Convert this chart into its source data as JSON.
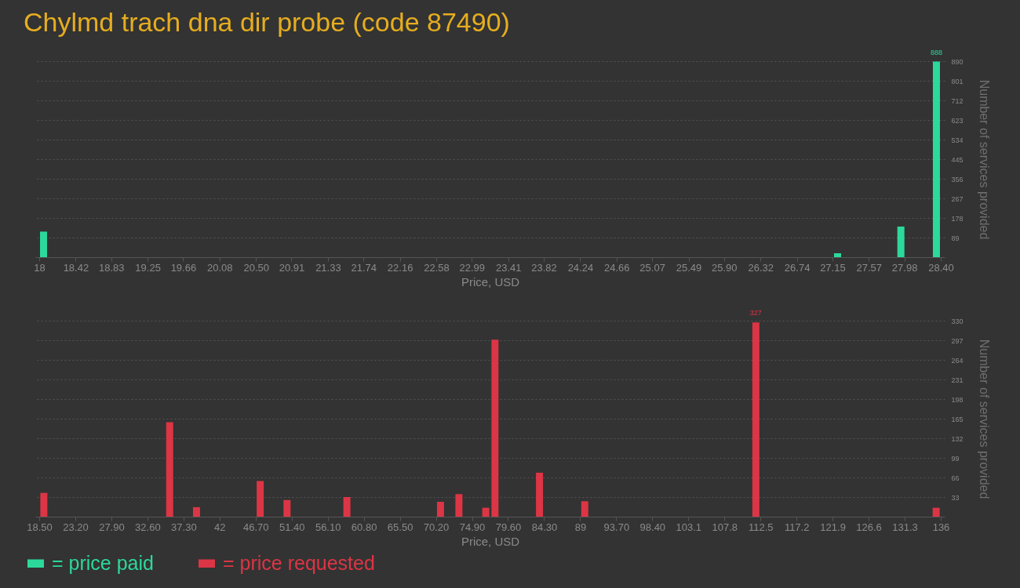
{
  "chart_data": [
    {
      "type": "bar",
      "title": "Chylmd trach dna dir probe (code 87490)",
      "xlabel": "Price, USD",
      "ylabel": "Number of services provided",
      "x": [
        18.05,
        27.21,
        27.94,
        28.35
      ],
      "series": [
        {
          "name": "= price paid",
          "color": "#2bd99b",
          "values": [
            116,
            18,
            139,
            888
          ],
          "value_labels": [
            null,
            null,
            null,
            "888"
          ]
        }
      ],
      "xlim": [
        18,
        28.4
      ],
      "xticks": [
        18,
        {
          "value": 18.42,
          "label": "18.42"
        },
        {
          "value": 18.83,
          "label": "18.83"
        },
        {
          "value": 19.25,
          "label": "19.25"
        },
        {
          "value": 19.66,
          "label": "19.66"
        },
        {
          "value": 20.08,
          "label": "20.08"
        },
        {
          "value": 20.5,
          "label": "20.50"
        },
        {
          "value": 20.91,
          "label": "20.91"
        },
        {
          "value": 21.33,
          "label": "21.33"
        },
        {
          "value": 21.74,
          "label": "21.74"
        },
        {
          "value": 22.16,
          "label": "22.16"
        },
        {
          "value": 22.58,
          "label": "22.58"
        },
        {
          "value": 22.99,
          "label": "22.99"
        },
        {
          "value": 23.41,
          "label": "23.41"
        },
        {
          "value": 23.82,
          "label": "23.82"
        },
        {
          "value": 24.24,
          "label": "24.24"
        },
        {
          "value": 24.66,
          "label": "24.66"
        },
        {
          "value": 25.07,
          "label": "25.07"
        },
        {
          "value": 25.49,
          "label": "25.49"
        },
        {
          "value": 25.9,
          "label": "25.90"
        },
        {
          "value": 26.32,
          "label": "26.32"
        },
        {
          "value": 26.74,
          "label": "26.74"
        },
        {
          "value": 27.15,
          "label": "27.15"
        },
        {
          "value": 27.57,
          "label": "27.57"
        },
        {
          "value": 27.98,
          "label": "27.98"
        },
        {
          "value": 28.4,
          "label": "28.40"
        }
      ],
      "ylim": [
        0,
        890
      ],
      "yticks": [
        89,
        178,
        267,
        356,
        445,
        534,
        623,
        712,
        801,
        890
      ],
      "grid": "y",
      "legend": "bottom left"
    },
    {
      "type": "bar",
      "xlabel": "Price, USD",
      "ylabel": "Number of services provided",
      "x": [
        19.1,
        35.5,
        39.0,
        47.3,
        50.8,
        58.6,
        70.8,
        73.2,
        76.7,
        77.9,
        83.7,
        89.6,
        111.9,
        135.4
      ],
      "series": [
        {
          "name": "= price requested",
          "color": "#dc3545",
          "values": [
            40,
            159,
            16,
            60,
            28,
            33,
            25,
            38,
            15,
            298,
            74,
            26,
            327,
            15
          ],
          "value_labels": [
            null,
            null,
            null,
            null,
            null,
            null,
            null,
            null,
            null,
            null,
            null,
            null,
            "327",
            null
          ]
        }
      ],
      "xlim": [
        18.5,
        136
      ],
      "xticks": [
        {
          "value": 18.5,
          "label": "18.50"
        },
        {
          "value": 23.2,
          "label": "23.20"
        },
        {
          "value": 27.9,
          "label": "27.90"
        },
        {
          "value": 32.6,
          "label": "32.60"
        },
        {
          "value": 37.3,
          "label": "37.30"
        },
        42,
        {
          "value": 46.7,
          "label": "46.70"
        },
        {
          "value": 51.4,
          "label": "51.40"
        },
        {
          "value": 56.1,
          "label": "56.10"
        },
        {
          "value": 60.8,
          "label": "60.80"
        },
        {
          "value": 65.5,
          "label": "65.50"
        },
        {
          "value": 70.2,
          "label": "70.20"
        },
        {
          "value": 74.9,
          "label": "74.90"
        },
        {
          "value": 79.6,
          "label": "79.60"
        },
        {
          "value": 84.3,
          "label": "84.30"
        },
        89,
        {
          "value": 93.7,
          "label": "93.70"
        },
        {
          "value": 98.4,
          "label": "98.40"
        },
        103.1,
        107.8,
        112.5,
        117.2,
        121.9,
        126.6,
        131.3,
        136
      ],
      "ylim": [
        0,
        330
      ],
      "yticks": [
        33,
        66,
        99,
        132,
        165,
        198,
        231,
        264,
        297,
        330
      ],
      "grid": "y",
      "legend": "bottom left"
    }
  ]
}
